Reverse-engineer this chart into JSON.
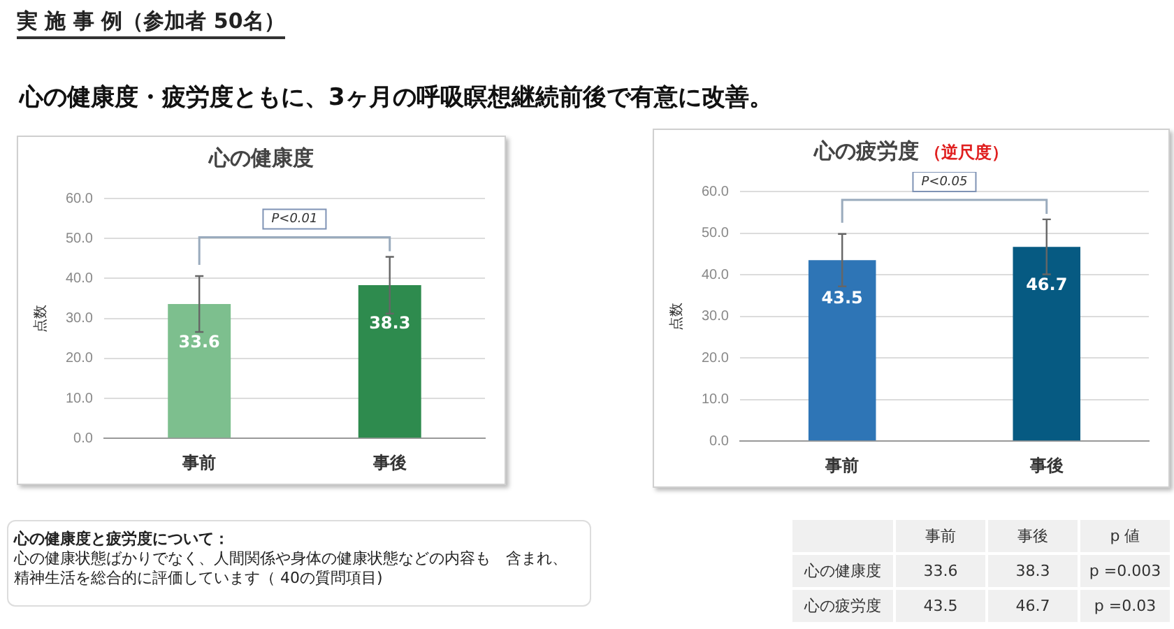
{
  "chart_data": [
    {
      "type": "bar",
      "title": "心の健康度",
      "ylabel": "点数",
      "categories": [
        "事前",
        "事後"
      ],
      "values": [
        33.6,
        38.3
      ],
      "colors": [
        "#7dbf8e",
        "#2e8b4e"
      ],
      "errors": [
        7.0,
        7.1
      ],
      "data_labels": true,
      "ylim": [
        0,
        60
      ],
      "yticks": [
        {
          "value": 0,
          "label": "0.0"
        },
        {
          "value": 10,
          "label": "10.0"
        },
        {
          "value": 20,
          "label": "20.0"
        },
        {
          "value": 30,
          "label": "30.0"
        },
        {
          "value": 40,
          "label": "40.0"
        },
        {
          "value": 50,
          "label": "50.0"
        },
        {
          "value": 60,
          "label": "60.0"
        }
      ],
      "grid": "y",
      "annotations": [
        "P<0.01"
      ]
    },
    {
      "type": "bar",
      "title": "心の疲労度",
      "subtitle": "（逆尺度）",
      "ylabel": "点数",
      "categories": [
        "事前",
        "事後"
      ],
      "values": [
        43.5,
        46.7
      ],
      "colors": [
        "#2e75b6",
        "#065a82"
      ],
      "errors": [
        6.3,
        6.6
      ],
      "data_labels": true,
      "ylim": [
        0,
        60
      ],
      "yticks": [
        {
          "value": 0,
          "label": "0.0"
        },
        {
          "value": 10,
          "label": "10.0"
        },
        {
          "value": 20,
          "label": "20.0"
        },
        {
          "value": 30,
          "label": "30.0"
        },
        {
          "value": 40,
          "label": "40.0"
        },
        {
          "value": 50,
          "label": "50.0"
        },
        {
          "value": 60,
          "label": "60.0"
        }
      ],
      "grid": "y",
      "annotations": [
        "P<0.05"
      ]
    },
    {
      "type": "other",
      "title": "実 施 事 例（参加者 50名）",
      "subtitle": "心の健康度・疲労度ともに、3ヶ月の呼吸瞑想継続前後で有意に改善。",
      "annotations": [
        "心の健康度と疲労度について：",
        "心の健康状態ばかりでなく、人間関係や身体の健康状態などの内容も　含まれ、",
        "精神生活を総合的に評価しています（ 40の質問項目)",
        "事前",
        "事後",
        "p 値",
        "心の健康度",
        "33.6",
        "38.3",
        "p =0.003",
        "心の疲労度",
        "43.5",
        "46.7",
        "p =0.03"
      ]
    }
  ]
}
